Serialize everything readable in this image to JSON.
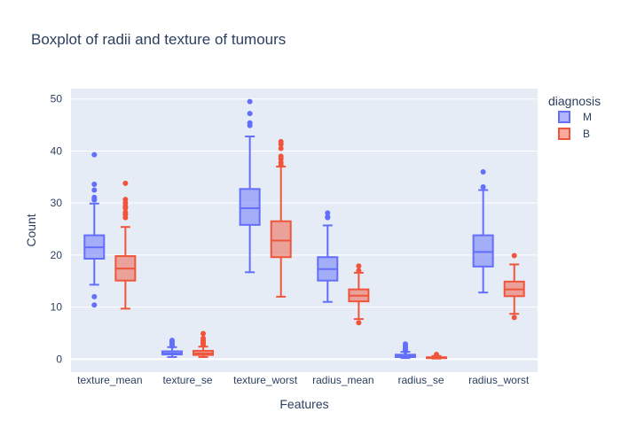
{
  "chart_data": {
    "type": "box",
    "title": "Boxplot of radii and texture of tumours",
    "xlabel": "Features",
    "ylabel": "Count",
    "ylim": [
      -2.5,
      52
    ],
    "yticks": [
      0,
      10,
      20,
      30,
      40,
      50
    ],
    "categories": [
      "texture_mean",
      "texture_se",
      "texture_worst",
      "radius_mean",
      "radius_se",
      "radius_worst"
    ],
    "grid": true,
    "legend": {
      "title": "diagnosis",
      "placement": "top-right"
    },
    "series": [
      {
        "name": "M",
        "color": "#636efa",
        "boxes": [
          {
            "min": 14.3,
            "q1": 19.3,
            "median": 21.5,
            "q3": 23.8,
            "max": 29.9,
            "outliers": [
              39.3,
              33.6,
              32.5,
              31.1,
              30.8,
              30.6,
              12.0,
              10.4
            ]
          },
          {
            "min": 0.4,
            "q1": 0.9,
            "median": 1.1,
            "q3": 1.5,
            "max": 2.3,
            "outliers": [
              2.5,
              2.8,
              3.1,
              3.4,
              3.6
            ]
          },
          {
            "min": 16.7,
            "q1": 25.8,
            "median": 29.0,
            "q3": 32.7,
            "max": 42.8,
            "outliers": [
              49.5,
              47.2,
              45.4,
              44.9
            ]
          },
          {
            "min": 11.0,
            "q1": 15.1,
            "median": 17.3,
            "q3": 19.6,
            "max": 25.7,
            "outliers": [
              28.1,
              27.4,
              27.2
            ]
          },
          {
            "min": 0.2,
            "q1": 0.4,
            "median": 0.55,
            "q3": 0.85,
            "max": 1.4,
            "outliers": [
              1.5,
              1.8,
              2.1,
              2.5,
              2.9
            ]
          },
          {
            "min": 12.8,
            "q1": 17.8,
            "median": 20.6,
            "q3": 23.8,
            "max": 32.5,
            "outliers": [
              36.0,
              33.1
            ]
          }
        ]
      },
      {
        "name": "B",
        "color": "#ef553b",
        "boxes": [
          {
            "min": 9.7,
            "q1": 15.1,
            "median": 17.4,
            "q3": 19.8,
            "max": 25.4,
            "outliers": [
              33.8,
              30.7,
              30.0,
              29.4,
              29.0,
              28.2,
              27.8,
              27.2
            ]
          },
          {
            "min": 0.4,
            "q1": 0.8,
            "median": 1.1,
            "q3": 1.6,
            "max": 2.4,
            "outliers": [
              2.7,
              3.0,
              3.3,
              3.6,
              4.0,
              4.9
            ]
          },
          {
            "min": 12.0,
            "q1": 19.6,
            "median": 22.8,
            "q3": 26.5,
            "max": 37.0,
            "outliers": [
              41.8,
              41.3,
              40.5,
              39.0,
              38.5,
              37.8,
              37.3
            ]
          },
          {
            "min": 7.7,
            "q1": 11.1,
            "median": 12.2,
            "q3": 13.4,
            "max": 16.6,
            "outliers": [
              17.9,
              17.0,
              7.0
            ]
          },
          {
            "min": 0.1,
            "q1": 0.2,
            "median": 0.26,
            "q3": 0.36,
            "max": 0.6,
            "outliers": [
              0.7,
              0.9
            ]
          },
          {
            "min": 8.7,
            "q1": 12.1,
            "median": 13.4,
            "q3": 14.9,
            "max": 18.2,
            "outliers": [
              19.9,
              8.0
            ]
          }
        ]
      }
    ]
  }
}
